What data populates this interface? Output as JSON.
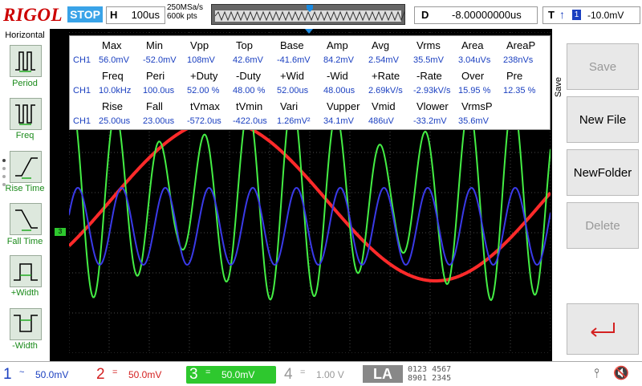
{
  "header": {
    "logo": "RIGOL",
    "run_state": "STOP",
    "h_label": "H",
    "h_value": "100us",
    "sample_rate": "250MSa/s",
    "memory_depth": "600k pts",
    "delay_label": "D",
    "delay_value": "-8.00000000us",
    "trig_label": "T",
    "trig_edge": "↑",
    "trig_source": "1",
    "trig_level": "-10.0mV"
  },
  "left_menu": {
    "title": "Horizontal",
    "items": [
      {
        "label": "Period",
        "icon": "period-icon"
      },
      {
        "label": "Freq",
        "icon": "freq-icon"
      },
      {
        "label": "Rise Time",
        "icon": "rise-time-icon"
      },
      {
        "label": "Fall Time",
        "icon": "fall-time-icon"
      },
      {
        "label": "+Width",
        "icon": "plus-width-icon"
      },
      {
        "label": "-Width",
        "icon": "minus-width-icon"
      }
    ]
  },
  "measurements": {
    "channel": "CH1",
    "headers1": [
      "Max",
      "Min",
      "Vpp",
      "Top",
      "Base",
      "Amp",
      "Avg",
      "Vrms",
      "Area",
      "AreaP"
    ],
    "values1": [
      "56.0mV",
      "-52.0mV",
      "108mV",
      "42.6mV",
      "-41.6mV",
      "84.2mV",
      "2.54mV",
      "35.5mV",
      "3.04uVs",
      "238nVs"
    ],
    "headers2": [
      "Freq",
      "Peri",
      "+Duty",
      "-Duty",
      "+Wid",
      "-Wid",
      "+Rate",
      "-Rate",
      "Over",
      "Pre"
    ],
    "values2": [
      "10.0kHz",
      "100.0us",
      "52.00 %",
      "48.00 %",
      "52.00us",
      "48.00us",
      "2.69kV/s",
      "-2.93kV/s",
      "15.95 %",
      "12.35 %"
    ],
    "headers3": [
      "Rise",
      "Fall",
      "tVmax",
      "tVmin",
      "Vari",
      "Vupper",
      "Vmid",
      "Vlower",
      "VrmsP"
    ],
    "values3": [
      "25.00us",
      "23.00us",
      "-572.0us",
      "-422.0us",
      "1.26mV²",
      "34.1mV",
      "486uV",
      "-33.2mV",
      "35.6mV"
    ]
  },
  "right_menu": {
    "side_label": "Save",
    "items": [
      {
        "label": "Save",
        "enabled": false
      },
      {
        "label": "New File",
        "enabled": true
      },
      {
        "label": "NewFolder",
        "enabled": true
      },
      {
        "label": "Delete",
        "enabled": false
      }
    ],
    "back_icon": "return-arrow-icon"
  },
  "channels": [
    {
      "num": "1",
      "coupling": "~",
      "scale": "50.0mV",
      "color": "#1a3fc0"
    },
    {
      "num": "2",
      "coupling": "=",
      "scale": "50.0mV",
      "color": "#d42020"
    },
    {
      "num": "3",
      "coupling": "=",
      "scale": "50.0mV",
      "color": "#2ec82e"
    },
    {
      "num": "4",
      "coupling": "=",
      "scale": "1.00 V",
      "color": "#999999"
    }
  ],
  "la_label": "LA",
  "la_digits_top": "0123 4567",
  "la_digits_bottom": "8901 2345",
  "status_icons": [
    "usb-icon",
    "speaker-muted-icon"
  ],
  "colors": {
    "ch1": "#3a3ae8",
    "ch2": "#ff2a2a",
    "ch3": "#44ee44",
    "grid": "#555555"
  }
}
